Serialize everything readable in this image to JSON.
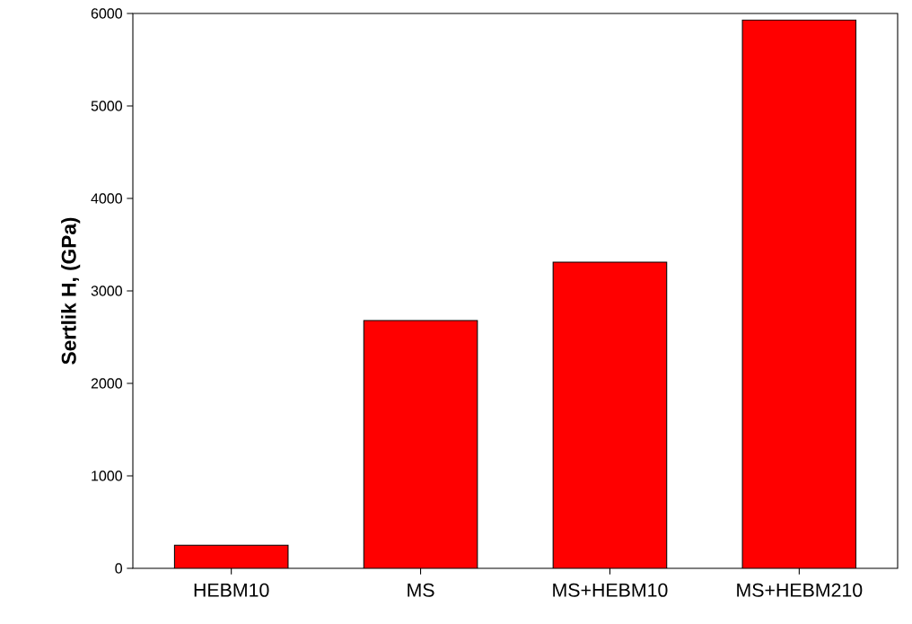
{
  "chart_data": {
    "type": "bar",
    "ylabel": "Sertlik H, (GPa)",
    "categories": [
      "HEBM10",
      "MS",
      "MS+HEBM10",
      "MS+HEBM210"
    ],
    "values": [
      250,
      2680,
      3310,
      5930
    ],
    "color": "#ff0000",
    "ylim": [
      0,
      6000
    ],
    "yticks": [
      0,
      1000,
      2000,
      3000,
      4000,
      5000,
      6000
    ],
    "grid": false
  }
}
